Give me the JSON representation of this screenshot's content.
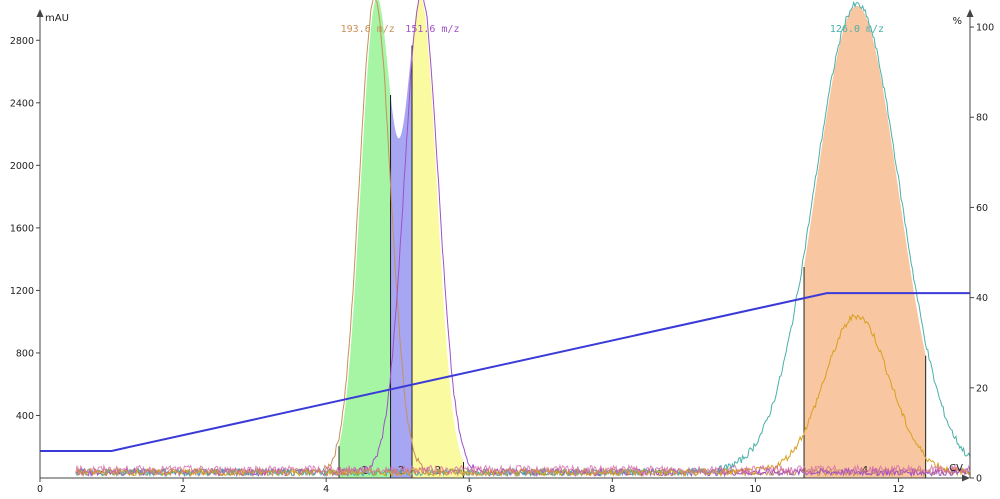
{
  "chart_data": {
    "type": "line",
    "title": "",
    "xlabel": "CV",
    "ylabel_left": "mAU",
    "ylabel_right": "%",
    "xlim": [
      0,
      13
    ],
    "ylim_left": [
      0,
      3000
    ],
    "ylim_right": [
      0,
      104
    ],
    "x_ticks": [
      0,
      2,
      4,
      6,
      8,
      10,
      12
    ],
    "y_left_ticks": [
      400,
      800,
      1200,
      1600,
      2000,
      2400,
      2800
    ],
    "y_right_ticks": [
      0,
      20,
      40,
      60,
      80,
      100
    ],
    "grid": false,
    "colors": {
      "axis": "#444444",
      "gradient": "#3a3ad8",
      "fraction_1": "#a5f5a5",
      "fraction_2": "#a6a6f3",
      "fraction_3": "#fafaa0",
      "fraction_4": "#f8c6a0",
      "trace_brown": "#c8905a",
      "trace_purple": "#a050c8",
      "trace_teal": "#4ab0a8",
      "trace_orange": "#d8a020",
      "trace_pink": "#d46aa8"
    },
    "gradient_percent": {
      "x": [
        0,
        1,
        11.0,
        13
      ],
      "y": [
        6,
        6,
        41,
        41
      ]
    },
    "uv_peaks": [
      {
        "center": 4.7,
        "height": 3000,
        "sigma": 0.22
      },
      {
        "center": 5.33,
        "height": 3000,
        "sigma": 0.22
      },
      {
        "center": 11.42,
        "height": 3000,
        "sigma": 0.58
      }
    ],
    "ms_traces": [
      {
        "label": "193.6 m/z",
        "center": 4.68,
        "height": 3040,
        "sigma": 0.22,
        "color_key": "trace_brown"
      },
      {
        "label": "151.6 m/z",
        "center": 5.33,
        "height": 3060,
        "sigma": 0.24,
        "color_key": "trace_purple"
      },
      {
        "label": "126.0 m/z",
        "center": 11.42,
        "height": 2990,
        "sigma": 0.6,
        "color_key": "trace_teal"
      },
      {
        "label": "",
        "center": 11.42,
        "height": 1000,
        "sigma": 0.45,
        "color_key": "trace_orange"
      }
    ],
    "fractions": [
      {
        "label": "1",
        "x_start": 4.18,
        "x_end": 4.9,
        "color_key": "fraction_1"
      },
      {
        "label": "2",
        "x_start": 4.9,
        "x_end": 5.2,
        "color_key": "fraction_2"
      },
      {
        "label": "3",
        "x_start": 5.2,
        "x_end": 5.92,
        "color_key": "fraction_3"
      },
      {
        "label": "4",
        "x_start": 10.68,
        "x_end": 12.38,
        "color_key": "fraction_4"
      }
    ]
  }
}
